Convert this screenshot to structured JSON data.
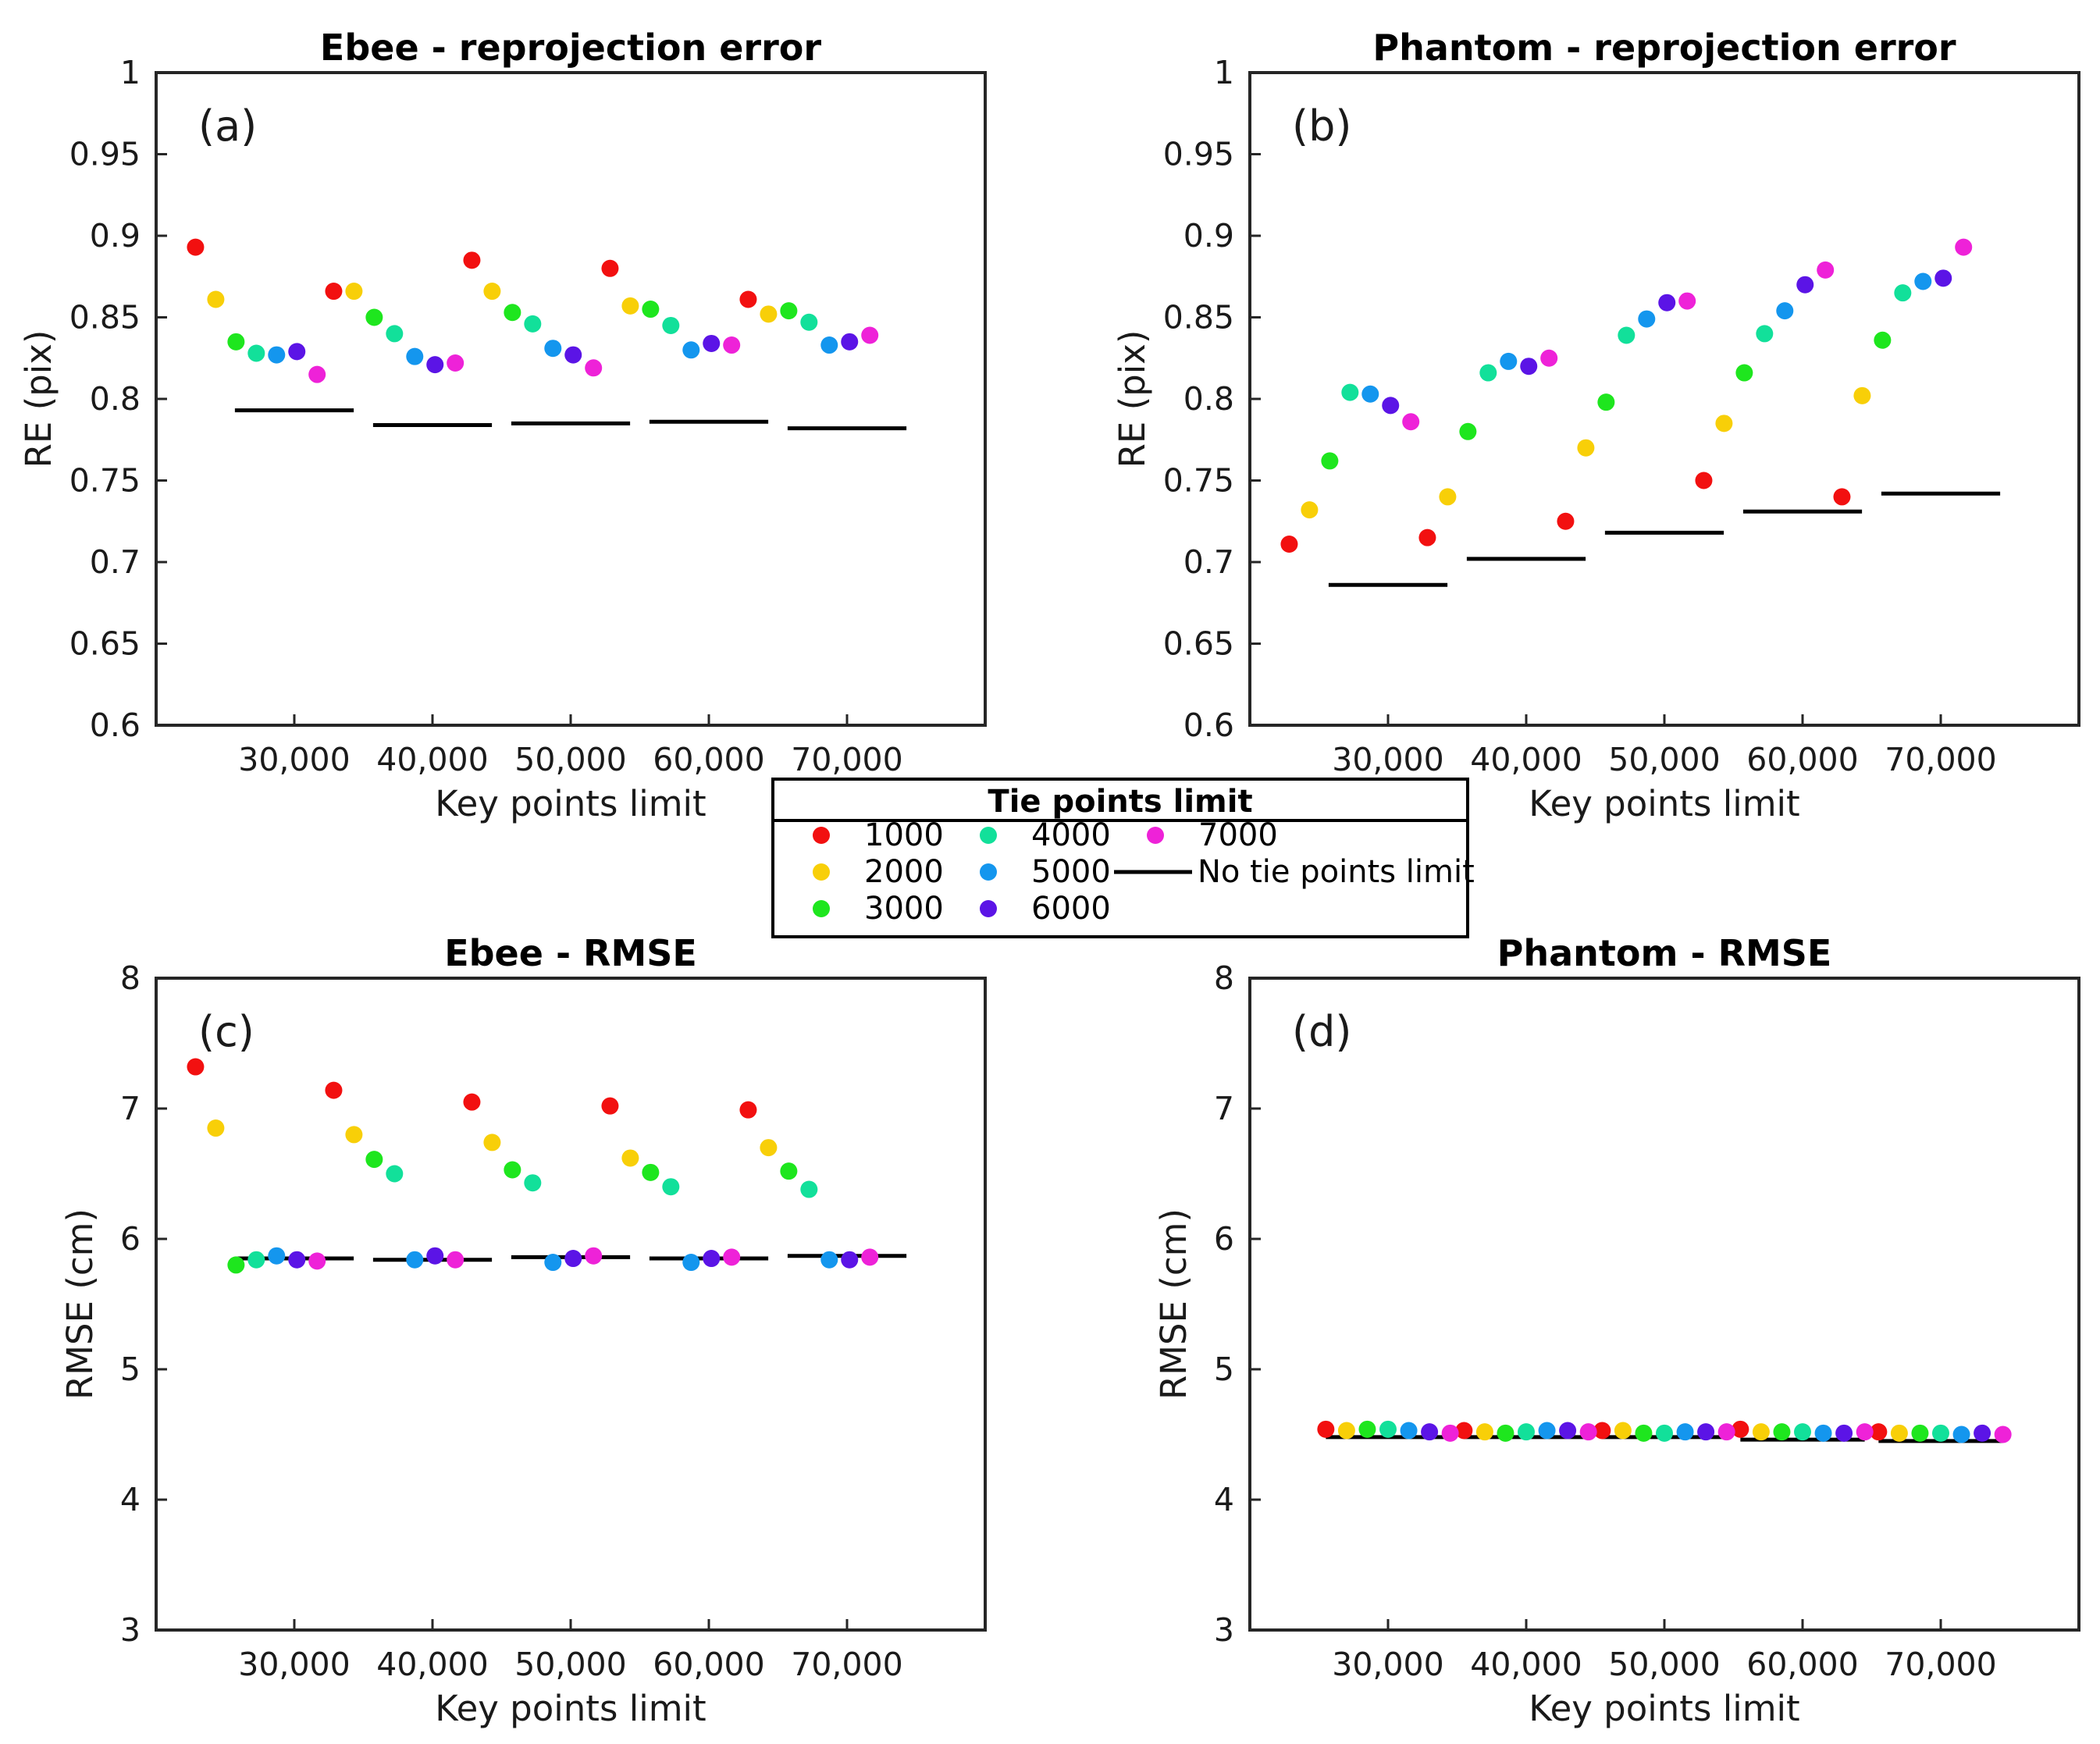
{
  "legend": {
    "title": "Tie points limit",
    "entries": [
      {
        "label": "1000",
        "color": "#f21010"
      },
      {
        "label": "2000",
        "color": "#f8cf08"
      },
      {
        "label": "3000",
        "color": "#1ee61e"
      },
      {
        "label": "4000",
        "color": "#12e09a"
      },
      {
        "label": "5000",
        "color": "#1496ee"
      },
      {
        "label": "6000",
        "color": "#5b14e6"
      },
      {
        "label": "7000",
        "color": "#ee22d8"
      }
    ],
    "line_label": "No tie points limit",
    "line_color": "#000000"
  },
  "chart_data": [
    {
      "type": "scatter",
      "tag": "(a)",
      "title": "Ebee - reprojection error",
      "xlabel": "Key points limit",
      "ylabel": "RE (pix)",
      "categories": [
        "30,000",
        "40,000",
        "50,000",
        "60,000",
        "70,000"
      ],
      "ylim": [
        0.6,
        1.0
      ],
      "yticks": [
        "0.6",
        "0.65",
        "0.7",
        "0.75",
        "0.8",
        "0.85",
        "0.9",
        "0.95",
        "1"
      ],
      "series": [
        {
          "name": "1000",
          "values": [
            0.893,
            0.866,
            0.885,
            0.88,
            0.861
          ]
        },
        {
          "name": "2000",
          "values": [
            0.861,
            0.866,
            0.866,
            0.857,
            0.852
          ]
        },
        {
          "name": "3000",
          "values": [
            0.835,
            0.85,
            0.853,
            0.855,
            0.854
          ]
        },
        {
          "name": "4000",
          "values": [
            0.828,
            0.84,
            0.846,
            0.845,
            0.847
          ]
        },
        {
          "name": "5000",
          "values": [
            0.827,
            0.826,
            0.831,
            0.83,
            0.833
          ]
        },
        {
          "name": "6000",
          "values": [
            0.829,
            0.821,
            0.827,
            0.834,
            0.835
          ]
        },
        {
          "name": "7000",
          "values": [
            0.815,
            0.822,
            0.819,
            0.833,
            0.839
          ]
        }
      ],
      "baseline": {
        "name": "No tie points limit",
        "values": [
          0.793,
          0.784,
          0.785,
          0.786,
          0.782
        ]
      }
    },
    {
      "type": "scatter",
      "tag": "(b)",
      "title": "Phantom - reprojection error",
      "xlabel": "Key points limit",
      "ylabel": "RE (pix)",
      "categories": [
        "30,000",
        "40,000",
        "50,000",
        "60,000",
        "70,000"
      ],
      "ylim": [
        0.6,
        1.0
      ],
      "yticks": [
        "0.6",
        "0.65",
        "0.7",
        "0.75",
        "0.8",
        "0.85",
        "0.9",
        "0.95",
        "1"
      ],
      "series": [
        {
          "name": "1000",
          "values": [
            0.711,
            0.715,
            0.725,
            0.75,
            0.74
          ]
        },
        {
          "name": "2000",
          "values": [
            0.732,
            0.74,
            0.77,
            0.785,
            0.802
          ]
        },
        {
          "name": "3000",
          "values": [
            0.762,
            0.78,
            0.798,
            0.816,
            0.836
          ]
        },
        {
          "name": "4000",
          "values": [
            0.804,
            0.816,
            0.839,
            0.84,
            0.865
          ]
        },
        {
          "name": "5000",
          "values": [
            0.803,
            0.823,
            0.849,
            0.854,
            0.872
          ]
        },
        {
          "name": "6000",
          "values": [
            0.796,
            0.82,
            0.859,
            0.87,
            0.874
          ]
        },
        {
          "name": "7000",
          "values": [
            0.786,
            0.825,
            0.86,
            0.879,
            0.893
          ]
        }
      ],
      "baseline": {
        "name": "No tie points limit",
        "values": [
          0.686,
          0.702,
          0.718,
          0.731,
          0.742
        ]
      }
    },
    {
      "type": "scatter",
      "tag": "(c)",
      "title": "Ebee - RMSE",
      "xlabel": "Key points limit",
      "ylabel": "RMSE (cm)",
      "categories": [
        "30,000",
        "40,000",
        "50,000",
        "60,000",
        "70,000"
      ],
      "ylim": [
        3,
        8
      ],
      "yticks": [
        "3",
        "4",
        "5",
        "6",
        "7",
        "8"
      ],
      "series": [
        {
          "name": "1000",
          "values": [
            7.32,
            7.14,
            7.05,
            7.02,
            6.99
          ]
        },
        {
          "name": "2000",
          "values": [
            6.85,
            6.8,
            6.74,
            6.62,
            6.7
          ]
        },
        {
          "name": "3000",
          "values": [
            5.8,
            6.61,
            6.53,
            6.51,
            6.52
          ]
        },
        {
          "name": "4000",
          "values": [
            5.84,
            6.5,
            6.43,
            6.4,
            6.38
          ]
        },
        {
          "name": "5000",
          "values": [
            5.87,
            5.84,
            5.82,
            5.82,
            5.84
          ]
        },
        {
          "name": "6000",
          "values": [
            5.84,
            5.87,
            5.85,
            5.85,
            5.84
          ]
        },
        {
          "name": "7000",
          "values": [
            5.83,
            5.84,
            5.87,
            5.86,
            5.86
          ]
        }
      ],
      "baseline": {
        "name": "No tie points limit",
        "values": [
          5.85,
          5.84,
          5.86,
          5.85,
          5.87
        ]
      }
    },
    {
      "type": "scatter",
      "tag": "(d)",
      "title": "Phantom - RMSE",
      "xlabel": "Key points limit",
      "ylabel": "RMSE (cm)",
      "categories": [
        "30,000",
        "40,000",
        "50,000",
        "60,000",
        "70,000"
      ],
      "ylim": [
        3,
        8
      ],
      "yticks": [
        "3",
        "4",
        "5",
        "6",
        "7",
        "8"
      ],
      "series": [
        {
          "name": "1000",
          "values": [
            4.54,
            4.53,
            4.53,
            4.54,
            4.52
          ]
        },
        {
          "name": "2000",
          "values": [
            4.53,
            4.52,
            4.53,
            4.52,
            4.51
          ]
        },
        {
          "name": "3000",
          "values": [
            4.54,
            4.51,
            4.51,
            4.52,
            4.51
          ]
        },
        {
          "name": "4000",
          "values": [
            4.54,
            4.52,
            4.51,
            4.52,
            4.51
          ]
        },
        {
          "name": "5000",
          "values": [
            4.53,
            4.53,
            4.52,
            4.51,
            4.5
          ]
        },
        {
          "name": "6000",
          "values": [
            4.52,
            4.53,
            4.52,
            4.51,
            4.51
          ]
        },
        {
          "name": "7000",
          "values": [
            4.51,
            4.52,
            4.52,
            4.52,
            4.5
          ]
        }
      ],
      "baseline": {
        "name": "No tie points limit",
        "values": [
          4.48,
          4.48,
          4.48,
          4.46,
          4.45
        ]
      }
    }
  ]
}
